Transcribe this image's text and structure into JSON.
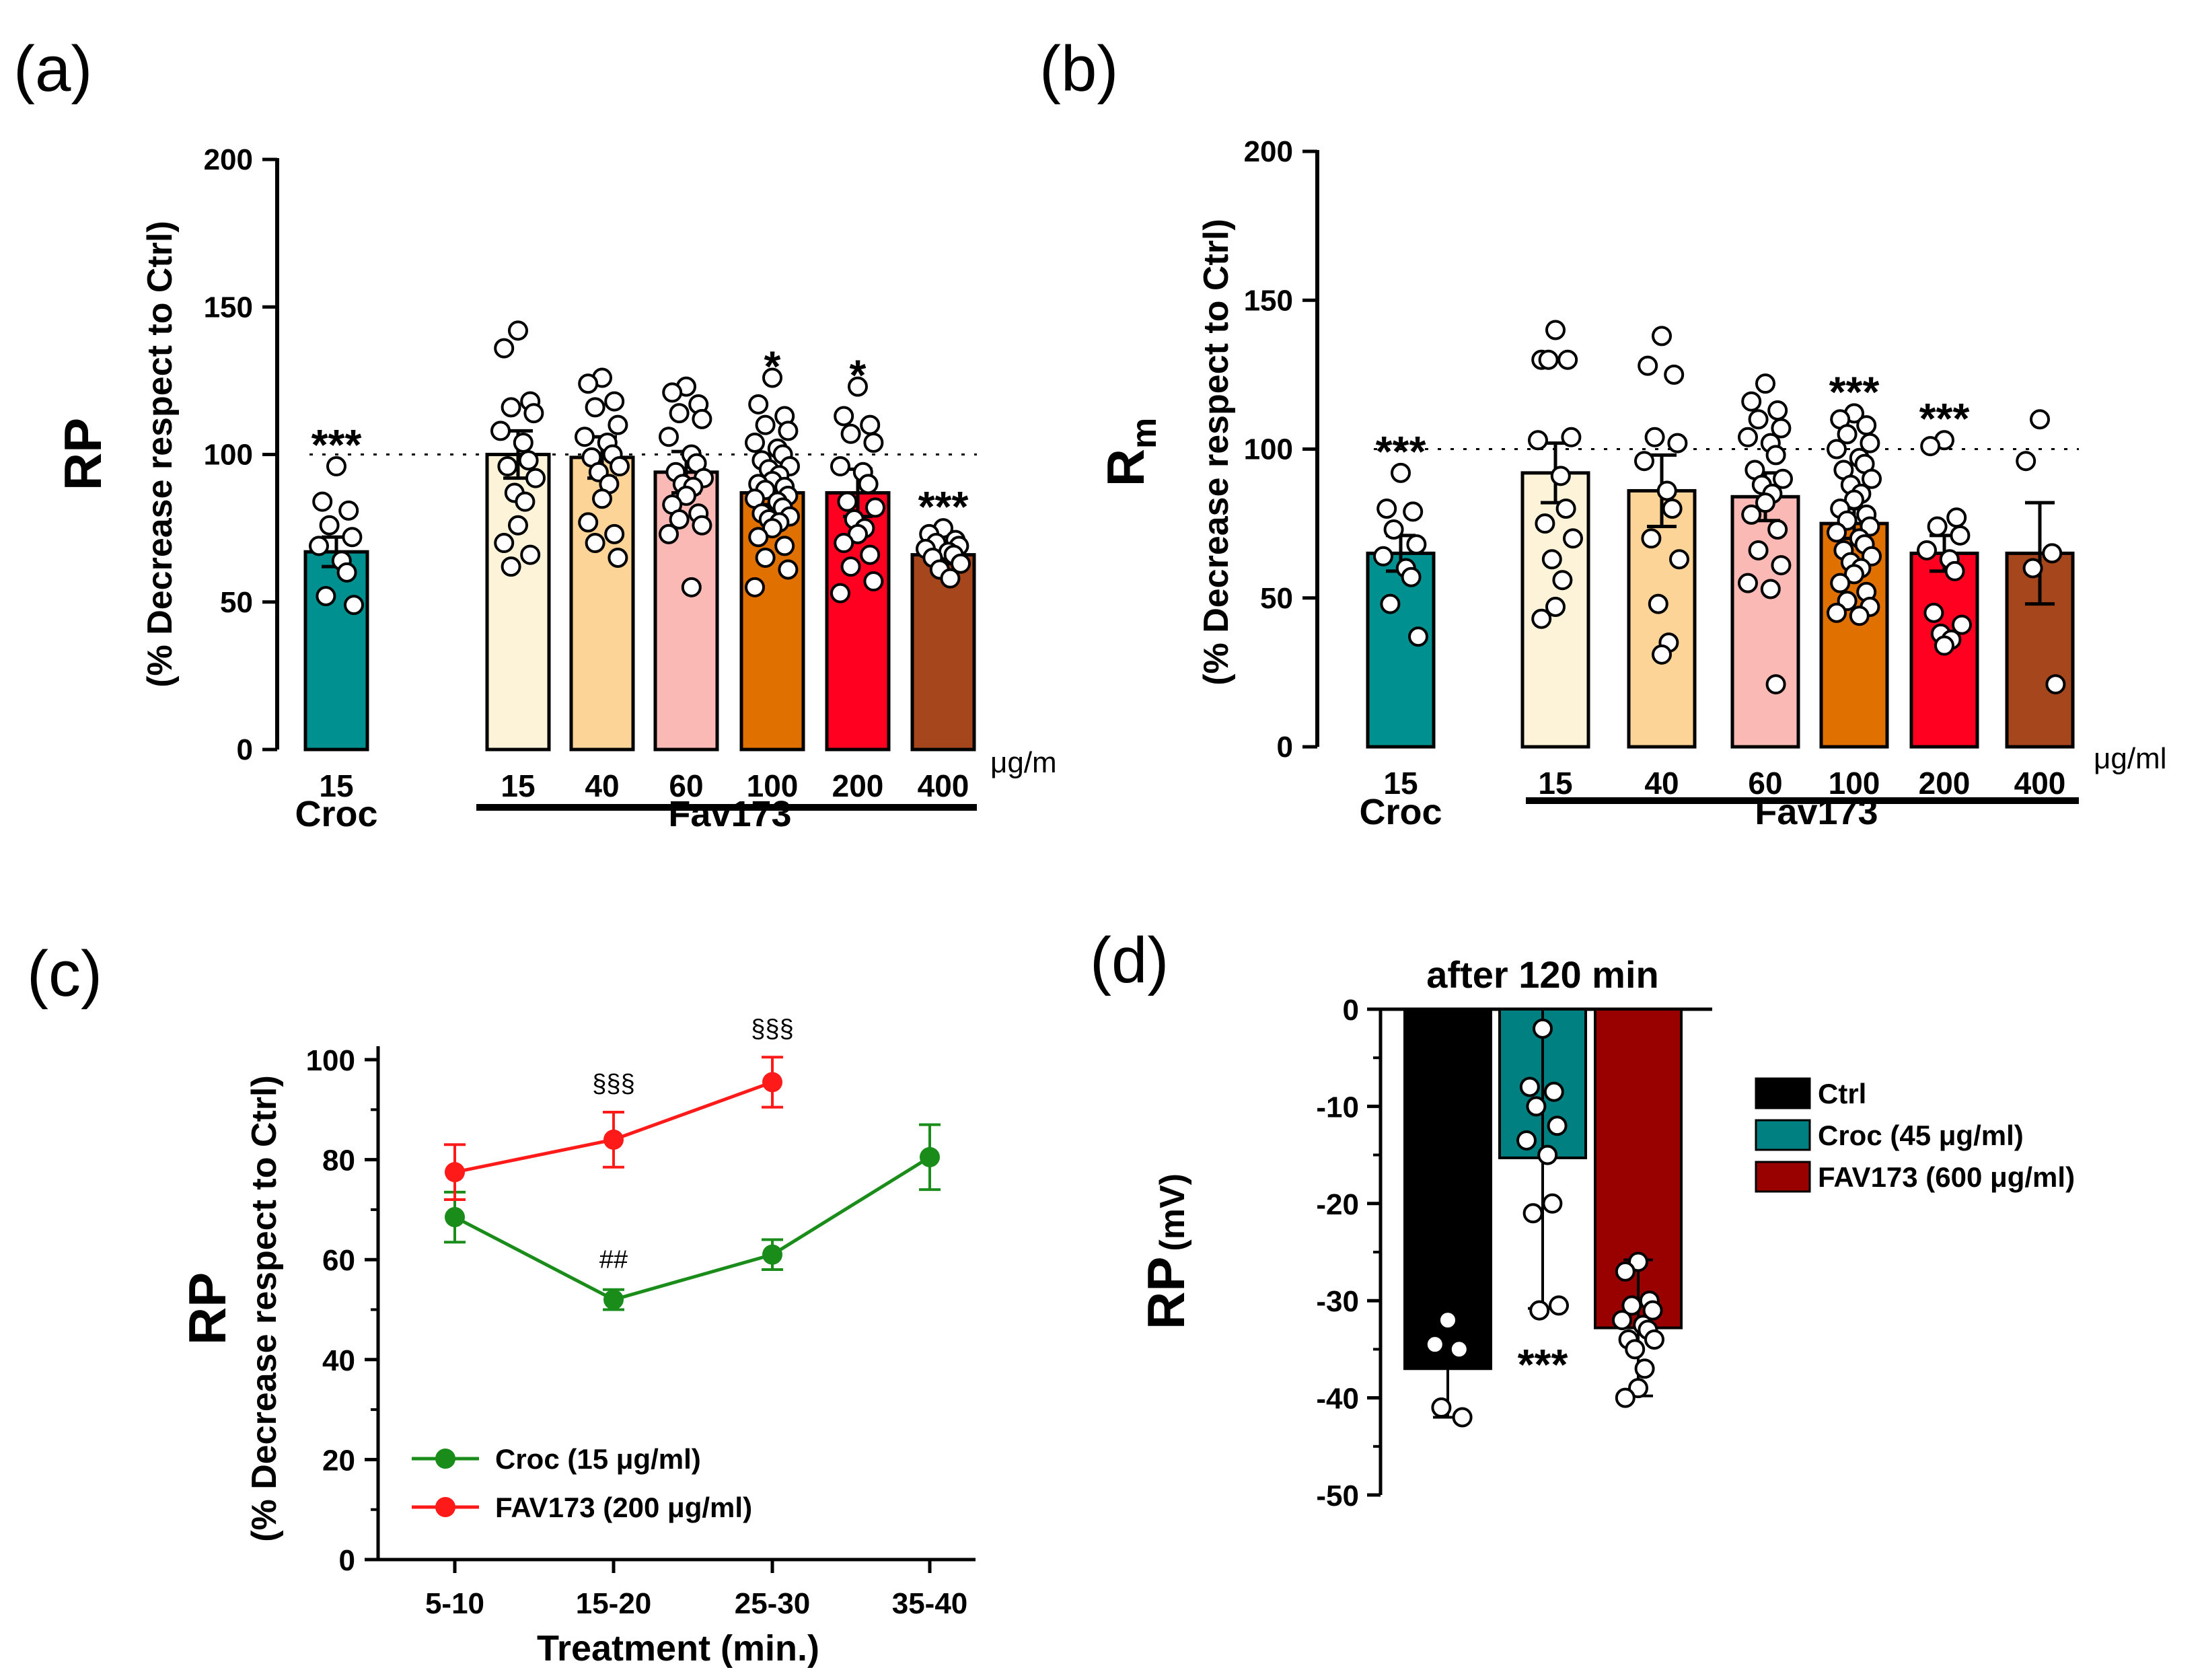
{
  "colors": {
    "croc": "#009090",
    "fav15": "#fdf3d9",
    "fav40": "#fdd498",
    "fav60": "#fbb9b6",
    "fav100": "#e07000",
    "fav200": "#ff0020",
    "fav400": "#a5461c",
    "green": "#1a8c1a",
    "red": "#ff1a1a",
    "ctrl": "#000000",
    "croc45": "#008080",
    "fav600": "#990000"
  },
  "chart_data": [
    {
      "panel": "(a)",
      "type": "bar",
      "ylabel": "RP",
      "ylabel_sub": "(% Decrease respect to Ctrl)",
      "ylim": [
        0,
        200
      ],
      "yticks": [
        "0",
        "50",
        "100",
        "150",
        "200"
      ],
      "reference_line": 100,
      "unit": "μg/m",
      "groups": [
        {
          "name": "Croc",
          "categories": [
            "15"
          ]
        },
        {
          "name": "Fav173",
          "categories": [
            "15",
            "40",
            "60",
            "100",
            "200",
            "400"
          ]
        }
      ],
      "bars": [
        {
          "group": "Croc",
          "dose": "15",
          "value": 67,
          "err": 5,
          "sig": "***",
          "points": [
            96,
            84,
            81,
            76,
            72,
            69,
            64,
            60,
            52,
            49
          ]
        },
        {
          "group": "Fav173",
          "dose": "15",
          "value": 100,
          "err": 8,
          "sig": "",
          "points": [
            142,
            136,
            118,
            116,
            114,
            108,
            104,
            98,
            96,
            92,
            87,
            84,
            76,
            70,
            66,
            62
          ]
        },
        {
          "group": "Fav173",
          "dose": "40",
          "value": 99,
          "err": 7,
          "sig": "",
          "points": [
            126,
            124,
            118,
            116,
            110,
            106,
            104,
            100,
            99,
            96,
            94,
            90,
            85,
            77,
            73,
            70,
            65
          ]
        },
        {
          "group": "Fav173",
          "dose": "60",
          "value": 94,
          "err": 7,
          "sig": "",
          "points": [
            123,
            121,
            117,
            114,
            112,
            106,
            100,
            97,
            94,
            92,
            90,
            89,
            86,
            83,
            80,
            78,
            76,
            73,
            55
          ]
        },
        {
          "group": "Fav173",
          "dose": "100",
          "value": 87,
          "err": 4,
          "sig": "*",
          "points": [
            126,
            117,
            113,
            110,
            108,
            104,
            102,
            100,
            98,
            96,
            95,
            93,
            91,
            90,
            89,
            88,
            86,
            85,
            84,
            82,
            80,
            79,
            78,
            77,
            75,
            72,
            69,
            65,
            61,
            55
          ]
        },
        {
          "group": "Fav173",
          "dose": "200",
          "value": 87,
          "err": 8,
          "sig": "*",
          "points": [
            123,
            113,
            110,
            107,
            104,
            96,
            94,
            90,
            84,
            82,
            78,
            75,
            73,
            70,
            66,
            62,
            57,
            53
          ]
        },
        {
          "group": "Fav173",
          "dose": "400",
          "value": 66,
          "err": 3,
          "sig": "***",
          "points": [
            75,
            73,
            71,
            70,
            69,
            68,
            67,
            66,
            65,
            63,
            61,
            58
          ]
        }
      ]
    },
    {
      "panel": "(b)",
      "type": "bar",
      "ylabel": "R",
      "ylabel_subscript": "m",
      "ylabel_sub": "(% Decrease respect to Ctrl)",
      "ylim": [
        0,
        200
      ],
      "yticks": [
        "0",
        "50",
        "100",
        "150",
        "200"
      ],
      "reference_line": 100,
      "unit": "μg/ml",
      "groups": [
        {
          "name": "Croc",
          "categories": [
            "15"
          ]
        },
        {
          "name": "Fav173",
          "categories": [
            "15",
            "40",
            "60",
            "100",
            "200",
            "400"
          ]
        }
      ],
      "bars": [
        {
          "group": "Croc",
          "dose": "15",
          "value": 65,
          "err": 6,
          "sig": "***",
          "points": [
            92,
            80,
            79,
            73,
            68,
            64,
            60,
            57,
            48,
            37
          ]
        },
        {
          "group": "Fav173",
          "dose": "15",
          "value": 92,
          "err": 10,
          "sig": "",
          "points": [
            140,
            130,
            130,
            130,
            104,
            103,
            91,
            80,
            75,
            70,
            63,
            56,
            47,
            43
          ]
        },
        {
          "group": "Fav173",
          "dose": "40",
          "value": 86,
          "err": 12,
          "sig": "",
          "points": [
            138,
            128,
            125,
            104,
            102,
            96,
            86,
            80,
            70,
            63,
            48,
            35,
            31
          ]
        },
        {
          "group": "Fav173",
          "dose": "60",
          "value": 84,
          "err": 8,
          "sig": "",
          "points": [
            122,
            116,
            113,
            110,
            107,
            104,
            102,
            98,
            93,
            90,
            88,
            85,
            82,
            78,
            73,
            66,
            61,
            55,
            53,
            21
          ]
        },
        {
          "group": "Fav173",
          "dose": "100",
          "value": 75,
          "err": 5,
          "sig": "***",
          "points": [
            112,
            110,
            108,
            105,
            102,
            100,
            97,
            95,
            93,
            90,
            88,
            85,
            83,
            80,
            78,
            76,
            74,
            72,
            70,
            68,
            66,
            64,
            62,
            60,
            58,
            55,
            52,
            49,
            47,
            45,
            44
          ]
        },
        {
          "group": "Fav173",
          "dose": "200",
          "value": 65,
          "err": 6,
          "sig": "***",
          "points": [
            103,
            101,
            77,
            74,
            71,
            66,
            63,
            59,
            45,
            41,
            38,
            36,
            34
          ]
        },
        {
          "group": "Fav173",
          "dose": "400",
          "value": 65,
          "err": 17,
          "sig": "",
          "points": [
            110,
            96,
            65,
            60,
            21
          ]
        }
      ]
    },
    {
      "panel": "(c)",
      "type": "line",
      "ylabel": "RP",
      "ylabel_sub": "(% Decrease respect to Ctrl)",
      "xlabel": "Treatment (min.)",
      "categories": [
        "5-10",
        "15-20",
        "25-30",
        "35-40"
      ],
      "ylim": [
        0,
        100
      ],
      "yticks": [
        "0",
        "20",
        "40",
        "60",
        "80",
        "100"
      ],
      "series": [
        {
          "name": "Croc  (15 μg/ml)",
          "color": "green",
          "values": [
            68.5,
            52,
            61,
            80.5
          ],
          "err": [
            5,
            2,
            3,
            6.5
          ],
          "marks": [
            "",
            "##",
            "",
            ""
          ]
        },
        {
          "name": "FAV173 (200 μg/ml)",
          "color": "red",
          "values": [
            77.5,
            84,
            95.5,
            null
          ],
          "err": [
            5.5,
            5.5,
            5
          ],
          "marks": [
            "",
            "§§§",
            "§§§",
            ""
          ]
        }
      ]
    },
    {
      "panel": "(d)",
      "type": "bar",
      "title": "after 120 min",
      "ylabel": "RP",
      "ylabel_unit": "(mV)",
      "ylim": [
        -50,
        0
      ],
      "yticks": [
        "0",
        "-10",
        "-20",
        "-30",
        "-40",
        "-50"
      ],
      "legend": [
        "Ctrl",
        "Croc (45 μg/ml)",
        "FAV173 (600 μg/ml)"
      ],
      "bars": [
        {
          "name": "Ctrl",
          "color": "ctrl",
          "value": -37,
          "err": 5,
          "sig": "",
          "points": [
            -32,
            -34.5,
            -35,
            -41,
            -42
          ]
        },
        {
          "name": "Croc (45 μg/ml)",
          "color": "croc45",
          "value": -15.3,
          "err": 15.5,
          "sig": "***",
          "points": [
            -2,
            -8,
            -8.5,
            -10,
            -12,
            -13.5,
            -15,
            -20,
            -21,
            -30.5,
            -31
          ]
        },
        {
          "name": "FAV173 (600 μg/ml)",
          "color": "fav600",
          "value": -32.8,
          "err": 7,
          "sig": "",
          "points": [
            -26,
            -27,
            -30,
            -30.5,
            -31,
            -32,
            -32.5,
            -33,
            -34,
            -34,
            -35,
            -37,
            -39,
            -40
          ]
        }
      ]
    }
  ]
}
